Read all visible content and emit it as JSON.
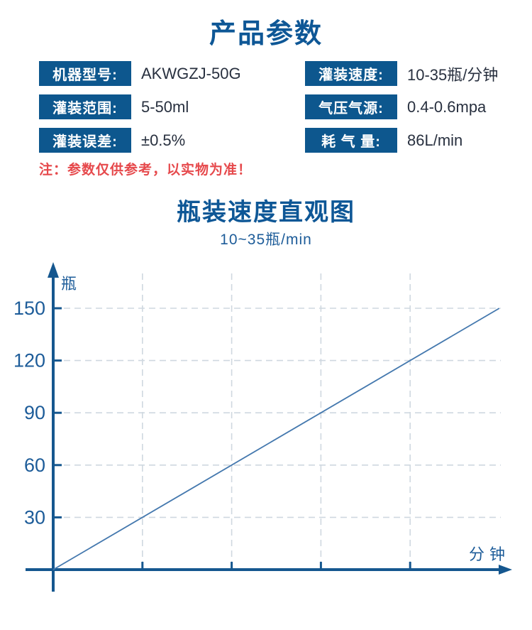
{
  "header": {
    "title": "产品参数"
  },
  "specs": [
    {
      "label": "机器型号:",
      "value": "AKWGZJ-50G"
    },
    {
      "label": "灌装速度:",
      "value": "10-35瓶/分钟"
    },
    {
      "label": "灌装范围:",
      "value": "5-50ml"
    },
    {
      "label": "气压气源:",
      "value": "0.4-0.6mpa"
    },
    {
      "label": "灌装误差:",
      "value": "±0.5%"
    },
    {
      "label": "耗 气 量:",
      "value": "86L/min"
    }
  ],
  "note": "注：参数仅供参考，以实物为准！",
  "chart": {
    "title": "瓶装速度直观图",
    "subtitle": "10~35瓶/min"
  },
  "chart_data": {
    "type": "line",
    "title": "瓶装速度直观图",
    "subtitle": "10~35瓶/min",
    "xlabel": "分钟",
    "ylabel": "瓶",
    "y_ticks": [
      150,
      120,
      90,
      60,
      30
    ],
    "y_tick_step": 30,
    "x_unlabeled_tick_count": 4,
    "x_range": [
      0,
      5.35
    ],
    "y_range": [
      0,
      165
    ],
    "grid": "dashed",
    "legend": "none",
    "series": [
      {
        "name": "瓶装速度",
        "points": [
          [
            0,
            0
          ],
          [
            5,
            150
          ]
        ]
      }
    ]
  },
  "colors": {
    "brand_blue": "#0E5796",
    "axis_blue": "#15578F",
    "tick_label_blue": "#1D5C99",
    "line_blue": "#4478AE",
    "grid_gray": "#CFD8E0",
    "value_text": "#28303F",
    "note_red": "#E6494C"
  }
}
